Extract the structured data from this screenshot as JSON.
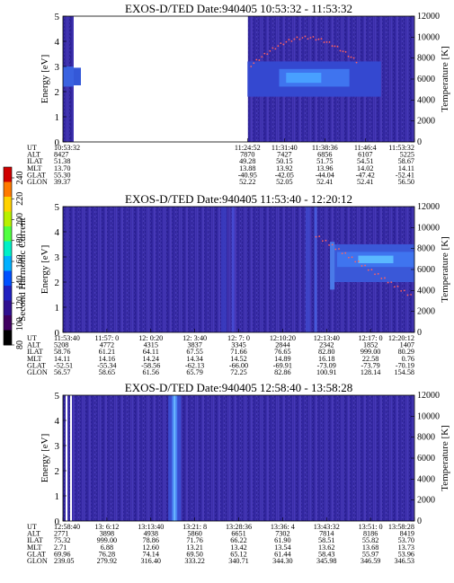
{
  "colorbar": {
    "label": "Second Harmonic Current",
    "ticks": [
      "240",
      "220",
      "200",
      "180",
      "160",
      "140",
      "120",
      "100",
      "80"
    ],
    "colors": [
      "#d00000",
      "#ff7a00",
      "#ffd200",
      "#b8f000",
      "#50ff40",
      "#00f0c8",
      "#00b0ff",
      "#0050ff",
      "#2020c0",
      "#301090",
      "#400060",
      "#000000"
    ]
  },
  "chart_data": [
    {
      "type": "heatmap",
      "title": "EXOS-D/TED   Date:940405   10:53:32 - 11:53:32",
      "ylabel": "Energy [eV]",
      "y2label": "Temperature [K]",
      "ylim": [
        0,
        5
      ],
      "y2lim": [
        0,
        12000
      ],
      "yticks": [
        "0",
        "1",
        "2",
        "3",
        "4",
        "5"
      ],
      "y2ticks": [
        "0",
        "2000",
        "4000",
        "6000",
        "8000",
        "10000",
        "12000"
      ],
      "row_labels": [
        "UT",
        "ALT",
        "ILAT",
        "MLT",
        "GLAT",
        "GLON"
      ],
      "columns": [
        {
          "pos": 0.0,
          "vals": [
            "10:53:32",
            "8427",
            "51.38",
            "13.70",
            "55.30",
            "39.37"
          ]
        },
        {
          "pos": 0.525,
          "vals": [
            "11:24:52",
            "7870",
            "49.28",
            "13.88",
            "-40.95",
            "52.22"
          ]
        },
        {
          "pos": 0.63,
          "vals": [
            "11:31:40",
            "7427",
            "50.15",
            "13.92",
            "-42.05",
            "52.05"
          ]
        },
        {
          "pos": 0.745,
          "vals": [
            "11:38:36",
            "6856",
            "51.75",
            "13.96",
            "-44.04",
            "52.41"
          ]
        },
        {
          "pos": 0.86,
          "vals": [
            "11:46:4",
            "6107",
            "54.51",
            "14.02",
            "-47.42",
            "52.41"
          ]
        },
        {
          "pos": 1.0,
          "vals": [
            "11:53:32",
            "5225",
            "58.67",
            "14.11",
            "-52.41",
            "56.50"
          ]
        }
      ]
    },
    {
      "type": "heatmap",
      "title": "EXOS-D/TED   Date:940405   11:53:40 - 12:20:12",
      "ylabel": "Energy [eV]",
      "y2label": "Temperature [K]",
      "ylim": [
        0,
        5
      ],
      "y2lim": [
        0,
        12000
      ],
      "yticks": [
        "0",
        "1",
        "2",
        "3",
        "4",
        "5"
      ],
      "y2ticks": [
        "0",
        "2000",
        "4000",
        "6000",
        "8000",
        "10000",
        "12000"
      ],
      "row_labels": [
        "UT",
        "ALT",
        "ILAT",
        "MLT",
        "GLAT",
        "GLON"
      ],
      "columns": [
        {
          "pos": 0.0,
          "vals": [
            "11:53:40",
            "5208",
            "58.76",
            "14.11",
            "-52.51",
            "56.57"
          ]
        },
        {
          "pos": 0.125,
          "vals": [
            "11:57: 0",
            "4772",
            "61.21",
            "14.16",
            "-55.34",
            "58.65"
          ]
        },
        {
          "pos": 0.25,
          "vals": [
            "12: 0:20",
            "4315",
            "64.11",
            "14.24",
            "-58.56",
            "61.56"
          ]
        },
        {
          "pos": 0.375,
          "vals": [
            "12: 3:40",
            "3837",
            "67.55",
            "14.34",
            "-62.13",
            "65.79"
          ]
        },
        {
          "pos": 0.5,
          "vals": [
            "12: 7: 0",
            "3345",
            "71.66",
            "14.52",
            "-66.00",
            "72.25"
          ]
        },
        {
          "pos": 0.625,
          "vals": [
            "12:10:20",
            "2844",
            "76.65",
            "14.89",
            "-69.91",
            "82.86"
          ]
        },
        {
          "pos": 0.75,
          "vals": [
            "12:13:40",
            "2342",
            "82.80",
            "16.18",
            "-73.09",
            "100.91"
          ]
        },
        {
          "pos": 0.875,
          "vals": [
            "12:17: 0",
            "1852",
            "999.00",
            "22.58",
            "-73.79",
            "128.14"
          ]
        },
        {
          "pos": 1.0,
          "vals": [
            "12:20:12",
            "1407",
            "80.29",
            "0.76",
            "-70.19",
            "154.58"
          ]
        }
      ]
    },
    {
      "type": "heatmap",
      "title": "EXOS-D/TED   Date:940405   12:58:40 - 13:58:28",
      "ylabel": "Energy [eV]",
      "y2label": "Temperature [K]",
      "ylim": [
        0,
        5
      ],
      "y2lim": [
        0,
        12000
      ],
      "yticks": [
        "0",
        "1",
        "2",
        "3",
        "4",
        "5"
      ],
      "y2ticks": [
        "0",
        "2000",
        "4000",
        "6000",
        "8000",
        "10000",
        "12000"
      ],
      "row_labels": [
        "UT",
        "ALT",
        "ILAT",
        "MLT",
        "GLAT",
        "GLON"
      ],
      "columns": [
        {
          "pos": 0.0,
          "vals": [
            "12:58:40",
            "2771",
            "75.32",
            "2.71",
            "69.96",
            "239.05"
          ]
        },
        {
          "pos": 0.125,
          "vals": [
            "13: 6:12",
            "3898",
            "999.00",
            "6.88",
            "76.28",
            "279.92"
          ]
        },
        {
          "pos": 0.25,
          "vals": [
            "13:13:40",
            "4938",
            "78.86",
            "12.60",
            "74.14",
            "316.40"
          ]
        },
        {
          "pos": 0.375,
          "vals": [
            "13:21: 8",
            "5860",
            "71.76",
            "13.21",
            "69.50",
            "333.22"
          ]
        },
        {
          "pos": 0.5,
          "vals": [
            "13:28:36",
            "6651",
            "66.22",
            "13.42",
            "65.12",
            "340.71"
          ]
        },
        {
          "pos": 0.625,
          "vals": [
            "13:36: 4",
            "7302",
            "61.90",
            "13.54",
            "61.44",
            "344.30"
          ]
        },
        {
          "pos": 0.75,
          "vals": [
            "13:43:32",
            "7814",
            "58.51",
            "13.62",
            "58.43",
            "345.98"
          ]
        },
        {
          "pos": 0.875,
          "vals": [
            "13:51: 0",
            "8186",
            "55.82",
            "13.68",
            "55.97",
            "346.59"
          ]
        },
        {
          "pos": 1.0,
          "vals": [
            "13:58:28",
            "8419",
            "53.70",
            "13.73",
            "53.96",
            "346.53"
          ]
        }
      ]
    }
  ]
}
